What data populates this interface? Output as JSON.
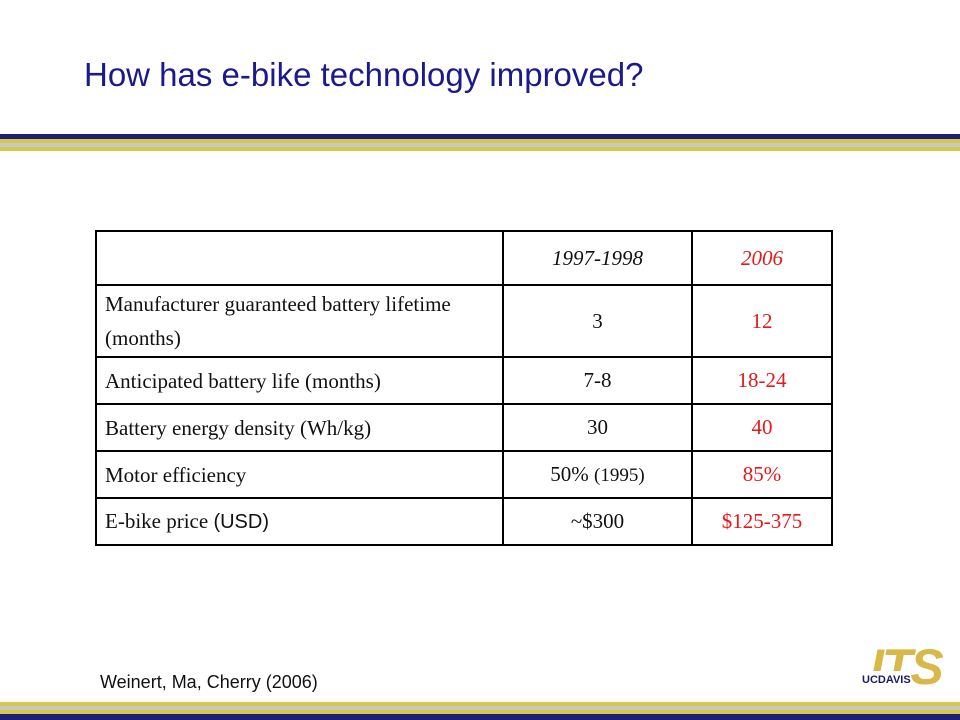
{
  "slide": {
    "title": "How has e-bike technology improved?",
    "citation": "Weinert, Ma, Cherry (2006)"
  },
  "colors": {
    "title": "#1a1a8c",
    "band_navy": "#1e1e78",
    "band_gold": "#d8c84a",
    "band_gray": "#c8c8c8",
    "highlight": "#e61919",
    "logo_gold": "#d9b84a",
    "logo_navy": "#1a1a6a"
  },
  "table": {
    "header": {
      "label": "",
      "col1": "1997-1998",
      "col2": "2006"
    },
    "rows": [
      {
        "label": "Manufacturer guaranteed  battery lifetime  (months)",
        "v1": "3",
        "v2": "12"
      },
      {
        "label": "Anticipated battery life (months)",
        "v1": "7-8",
        "v2": "18-24"
      },
      {
        "label": "Battery energy density (Wh/kg)",
        "v1": "30",
        "v2": "40"
      },
      {
        "label": "Motor efficiency",
        "v1": "50%",
        "v1_note": "(1995)",
        "v2": "85%"
      },
      {
        "label": "E-bike price",
        "label_unit": "(USD)",
        "v1": "~$300",
        "v2": "$125-375"
      }
    ]
  },
  "logo": {
    "brand": "ITS",
    "sub_a": "UC",
    "sub_b": "DAVIS",
    "icon": "its-ucdavis-logo"
  }
}
